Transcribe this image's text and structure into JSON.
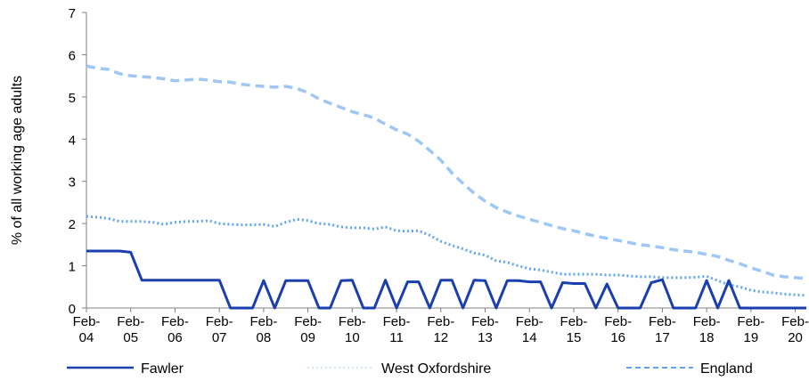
{
  "chart_data": {
    "type": "line",
    "ylabel": "% of all working age adults",
    "xlabel": "",
    "ylim": [
      0,
      7
    ],
    "yticks": [
      0,
      1,
      2,
      3,
      4,
      5,
      6,
      7
    ],
    "x_tick_labels": [
      {
        "line1": "Feb-",
        "line2": "04"
      },
      {
        "line1": "Feb-",
        "line2": "05"
      },
      {
        "line1": "Feb-",
        "line2": "06"
      },
      {
        "line1": "Feb-",
        "line2": "07"
      },
      {
        "line1": "Feb-",
        "line2": "08"
      },
      {
        "line1": "Feb-",
        "line2": "09"
      },
      {
        "line1": "Feb-",
        "line2": "10"
      },
      {
        "line1": "Feb-",
        "line2": "11"
      },
      {
        "line1": "Feb-",
        "line2": "12"
      },
      {
        "line1": "Feb-",
        "line2": "13"
      },
      {
        "line1": "Feb-",
        "line2": "14"
      },
      {
        "line1": "Feb-",
        "line2": "15"
      },
      {
        "line1": "Feb-",
        "line2": "16"
      },
      {
        "line1": "Feb-",
        "line2": "17"
      },
      {
        "line1": "Feb-",
        "line2": "18"
      },
      {
        "line1": "Feb-",
        "line2": "19"
      },
      {
        "line1": "Feb-",
        "line2": "20"
      }
    ],
    "grid": false,
    "legend_position": "bottom",
    "series": [
      {
        "name": "Fawler",
        "color": "#1a3fae",
        "style": "solid",
        "points": [
          [
            2004.08,
            1.35
          ],
          [
            2004.33,
            1.35
          ],
          [
            2004.58,
            1.35
          ],
          [
            2004.83,
            1.35
          ],
          [
            2005.08,
            1.32
          ],
          [
            2005.33,
            0.66
          ],
          [
            2005.58,
            0.66
          ],
          [
            2005.83,
            0.66
          ],
          [
            2006.08,
            0.66
          ],
          [
            2006.33,
            0.66
          ],
          [
            2006.58,
            0.66
          ],
          [
            2006.83,
            0.66
          ],
          [
            2007.08,
            0.66
          ],
          [
            2007.33,
            0
          ],
          [
            2007.58,
            0
          ],
          [
            2007.83,
            0
          ],
          [
            2008.08,
            0.65
          ],
          [
            2008.33,
            0
          ],
          [
            2008.58,
            0.65
          ],
          [
            2008.83,
            0.65
          ],
          [
            2009.08,
            0.65
          ],
          [
            2009.33,
            0
          ],
          [
            2009.58,
            0
          ],
          [
            2009.83,
            0.65
          ],
          [
            2010.08,
            0.66
          ],
          [
            2010.33,
            0
          ],
          [
            2010.58,
            0
          ],
          [
            2010.83,
            0.66
          ],
          [
            2011.08,
            0
          ],
          [
            2011.33,
            0.62
          ],
          [
            2011.58,
            0.62
          ],
          [
            2011.83,
            0
          ],
          [
            2012.08,
            0.66
          ],
          [
            2012.33,
            0.66
          ],
          [
            2012.58,
            0
          ],
          [
            2012.83,
            0.66
          ],
          [
            2013.08,
            0.65
          ],
          [
            2013.33,
            0
          ],
          [
            2013.58,
            0.65
          ],
          [
            2013.83,
            0.65
          ],
          [
            2014.08,
            0.62
          ],
          [
            2014.33,
            0.62
          ],
          [
            2014.58,
            0
          ],
          [
            2014.83,
            0.6
          ],
          [
            2015.08,
            0.58
          ],
          [
            2015.33,
            0.58
          ],
          [
            2015.58,
            0
          ],
          [
            2015.83,
            0.57
          ],
          [
            2016.08,
            0
          ],
          [
            2016.33,
            0
          ],
          [
            2016.58,
            0
          ],
          [
            2016.83,
            0.6
          ],
          [
            2017.08,
            0.67
          ],
          [
            2017.33,
            0
          ],
          [
            2017.58,
            0
          ],
          [
            2017.83,
            0
          ],
          [
            2018.08,
            0.65
          ],
          [
            2018.33,
            0
          ],
          [
            2018.58,
            0.65
          ],
          [
            2018.83,
            0
          ],
          [
            2019.08,
            0
          ],
          [
            2019.33,
            0
          ],
          [
            2019.58,
            0
          ],
          [
            2019.83,
            0
          ],
          [
            2020.08,
            0
          ],
          [
            2020.33,
            0
          ]
        ]
      },
      {
        "name": "West Oxfordshire",
        "color": "#5ea6ef",
        "style": "dotted",
        "points": [
          [
            2004.08,
            2.17
          ],
          [
            2004.33,
            2.15
          ],
          [
            2004.58,
            2.12
          ],
          [
            2004.83,
            2.05
          ],
          [
            2005.08,
            2.05
          ],
          [
            2005.33,
            2.05
          ],
          [
            2005.58,
            2.03
          ],
          [
            2005.83,
            1.98
          ],
          [
            2006.08,
            2.03
          ],
          [
            2006.33,
            2.05
          ],
          [
            2006.58,
            2.05
          ],
          [
            2006.83,
            2.07
          ],
          [
            2007.08,
            2.0
          ],
          [
            2007.33,
            1.98
          ],
          [
            2007.58,
            1.97
          ],
          [
            2007.83,
            1.97
          ],
          [
            2008.08,
            1.98
          ],
          [
            2008.33,
            1.93
          ],
          [
            2008.58,
            2.03
          ],
          [
            2008.83,
            2.1
          ],
          [
            2009.08,
            2.07
          ],
          [
            2009.33,
            2.0
          ],
          [
            2009.58,
            1.98
          ],
          [
            2009.83,
            1.92
          ],
          [
            2010.08,
            1.9
          ],
          [
            2010.33,
            1.9
          ],
          [
            2010.58,
            1.87
          ],
          [
            2010.83,
            1.92
          ],
          [
            2011.08,
            1.83
          ],
          [
            2011.33,
            1.82
          ],
          [
            2011.58,
            1.83
          ],
          [
            2011.83,
            1.72
          ],
          [
            2012.08,
            1.58
          ],
          [
            2012.33,
            1.48
          ],
          [
            2012.58,
            1.4
          ],
          [
            2012.83,
            1.3
          ],
          [
            2013.08,
            1.25
          ],
          [
            2013.33,
            1.12
          ],
          [
            2013.58,
            1.08
          ],
          [
            2013.83,
            1.0
          ],
          [
            2014.08,
            0.93
          ],
          [
            2014.33,
            0.9
          ],
          [
            2014.58,
            0.85
          ],
          [
            2014.83,
            0.8
          ],
          [
            2015.08,
            0.8
          ],
          [
            2015.33,
            0.8
          ],
          [
            2015.58,
            0.8
          ],
          [
            2015.83,
            0.78
          ],
          [
            2016.08,
            0.78
          ],
          [
            2016.33,
            0.76
          ],
          [
            2016.58,
            0.74
          ],
          [
            2016.83,
            0.74
          ],
          [
            2017.08,
            0.72
          ],
          [
            2017.33,
            0.72
          ],
          [
            2017.58,
            0.72
          ],
          [
            2017.83,
            0.73
          ],
          [
            2018.08,
            0.75
          ],
          [
            2018.33,
            0.65
          ],
          [
            2018.58,
            0.55
          ],
          [
            2018.83,
            0.5
          ],
          [
            2019.08,
            0.42
          ],
          [
            2019.33,
            0.38
          ],
          [
            2019.58,
            0.36
          ],
          [
            2019.83,
            0.33
          ],
          [
            2020.08,
            0.31
          ],
          [
            2020.33,
            0.3
          ]
        ]
      },
      {
        "name": "England",
        "color": "#9fc7f5",
        "style": "dashed",
        "points": [
          [
            2004.08,
            5.73
          ],
          [
            2004.33,
            5.68
          ],
          [
            2004.58,
            5.65
          ],
          [
            2004.83,
            5.55
          ],
          [
            2005.08,
            5.5
          ],
          [
            2005.33,
            5.48
          ],
          [
            2005.58,
            5.46
          ],
          [
            2005.83,
            5.43
          ],
          [
            2006.08,
            5.38
          ],
          [
            2006.33,
            5.4
          ],
          [
            2006.58,
            5.42
          ],
          [
            2006.83,
            5.4
          ],
          [
            2007.08,
            5.36
          ],
          [
            2007.33,
            5.35
          ],
          [
            2007.58,
            5.3
          ],
          [
            2007.83,
            5.27
          ],
          [
            2008.08,
            5.25
          ],
          [
            2008.33,
            5.23
          ],
          [
            2008.58,
            5.25
          ],
          [
            2008.83,
            5.2
          ],
          [
            2009.08,
            5.1
          ],
          [
            2009.33,
            4.95
          ],
          [
            2009.58,
            4.85
          ],
          [
            2009.83,
            4.75
          ],
          [
            2010.08,
            4.65
          ],
          [
            2010.33,
            4.58
          ],
          [
            2010.58,
            4.5
          ],
          [
            2010.83,
            4.35
          ],
          [
            2011.08,
            4.22
          ],
          [
            2011.33,
            4.12
          ],
          [
            2011.58,
            3.95
          ],
          [
            2011.83,
            3.73
          ],
          [
            2012.08,
            3.5
          ],
          [
            2012.33,
            3.2
          ],
          [
            2012.58,
            2.95
          ],
          [
            2012.83,
            2.72
          ],
          [
            2013.08,
            2.53
          ],
          [
            2013.33,
            2.38
          ],
          [
            2013.58,
            2.27
          ],
          [
            2013.83,
            2.18
          ],
          [
            2014.08,
            2.1
          ],
          [
            2014.33,
            2.03
          ],
          [
            2014.58,
            1.95
          ],
          [
            2014.83,
            1.88
          ],
          [
            2015.08,
            1.83
          ],
          [
            2015.33,
            1.76
          ],
          [
            2015.58,
            1.7
          ],
          [
            2015.83,
            1.65
          ],
          [
            2016.08,
            1.6
          ],
          [
            2016.33,
            1.55
          ],
          [
            2016.58,
            1.5
          ],
          [
            2016.83,
            1.47
          ],
          [
            2017.08,
            1.43
          ],
          [
            2017.33,
            1.38
          ],
          [
            2017.58,
            1.35
          ],
          [
            2017.83,
            1.32
          ],
          [
            2018.08,
            1.27
          ],
          [
            2018.33,
            1.22
          ],
          [
            2018.58,
            1.13
          ],
          [
            2018.83,
            1.05
          ],
          [
            2019.08,
            0.95
          ],
          [
            2019.33,
            0.87
          ],
          [
            2019.58,
            0.78
          ],
          [
            2019.83,
            0.74
          ],
          [
            2020.08,
            0.72
          ],
          [
            2020.33,
            0.7
          ]
        ]
      }
    ]
  }
}
